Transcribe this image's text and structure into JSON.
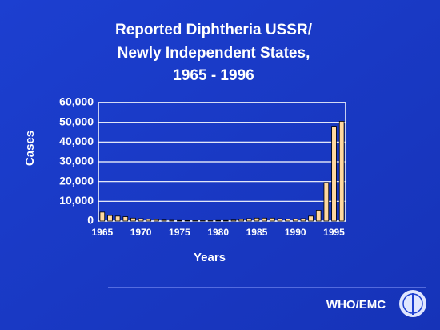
{
  "chart_data": {
    "type": "bar",
    "title": [
      "Reported Diphtheria USSR/",
      "Newly Independent States,",
      "1965 - 1996"
    ],
    "categories": [
      "1965",
      null,
      null,
      null,
      null,
      "1970",
      null,
      null,
      null,
      null,
      "1975",
      null,
      null,
      null,
      null,
      "1980",
      null,
      null,
      null,
      null,
      "1985",
      null,
      null,
      null,
      null,
      "1990",
      null,
      null,
      null,
      null,
      "1995",
      null
    ],
    "values": [
      4500,
      2800,
      2500,
      2200,
      1500,
      1200,
      900,
      700,
      500,
      400,
      300,
      250,
      200,
      200,
      200,
      300,
      300,
      500,
      800,
      1200,
      1500,
      1500,
      1500,
      1200,
      1000,
      1100,
      1200,
      2500,
      5500,
      19500,
      48000,
      50500
    ],
    "color": "#ffd8a0",
    "ylim": [
      0,
      60000
    ],
    "yticks": [
      0,
      {
        "value": 10000,
        "label": "10,000"
      },
      {
        "value": 20000,
        "label": "20,000"
      },
      {
        "value": 30000,
        "label": "30,000"
      },
      {
        "value": 40000,
        "label": "40,000"
      },
      {
        "value": 50000,
        "label": "50,000"
      },
      {
        "value": 60000,
        "label": "60,000"
      }
    ],
    "grid": true,
    "xlabel": "Years",
    "ylabel": "Cases",
    "footer": "WHO/EMC"
  }
}
